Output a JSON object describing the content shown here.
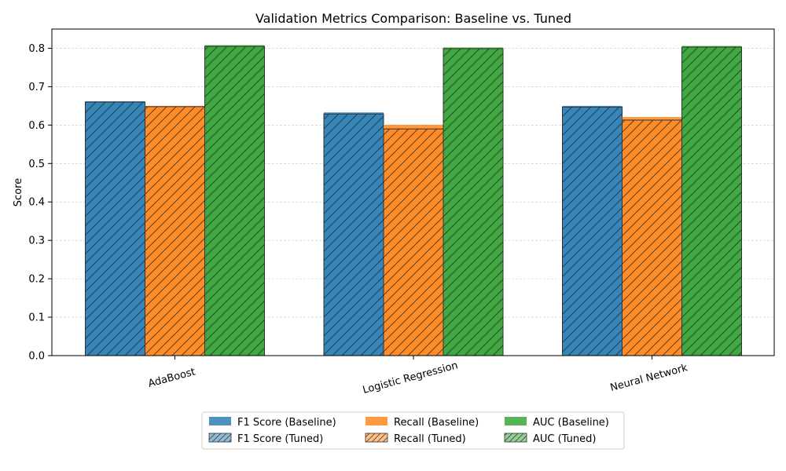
{
  "chart_data": {
    "type": "bar",
    "title": "Validation Metrics Comparison: Baseline vs. Tuned",
    "xlabel": "",
    "ylabel": "Score",
    "ylim": [
      0,
      0.85
    ],
    "yticks": [
      0.0,
      0.1,
      0.2,
      0.3,
      0.4,
      0.5,
      0.6,
      0.7,
      0.8
    ],
    "ytick_labels": [
      "0.0",
      "0.1",
      "0.2",
      "0.3",
      "0.4",
      "0.5",
      "0.6",
      "0.7",
      "0.8"
    ],
    "grid": "y-dashed",
    "categories": [
      "AdaBoost",
      "Logistic Regression",
      "Neural Network"
    ],
    "metrics": [
      {
        "name": "F1 Score",
        "color": "#1f77b4",
        "baseline": [
          0.662,
          0.633,
          0.65
        ],
        "tuned": [
          0.66,
          0.629,
          0.647
        ]
      },
      {
        "name": "Recall",
        "color": "#ff7f0e",
        "baseline": [
          0.65,
          0.601,
          0.621
        ],
        "tuned": [
          0.648,
          0.59,
          0.613
        ]
      },
      {
        "name": "AUC",
        "color": "#2ca02c",
        "baseline": [
          0.808,
          0.802,
          0.806
        ],
        "tuned": [
          0.805,
          0.799,
          0.803
        ]
      }
    ],
    "legend": {
      "placement": "bottom-center",
      "entries": [
        [
          "F1 Score (Baseline)",
          "Recall (Baseline)",
          "AUC (Baseline)"
        ],
        [
          "F1 Score (Tuned)",
          "Recall (Tuned)",
          "AUC (Tuned)"
        ]
      ]
    }
  }
}
